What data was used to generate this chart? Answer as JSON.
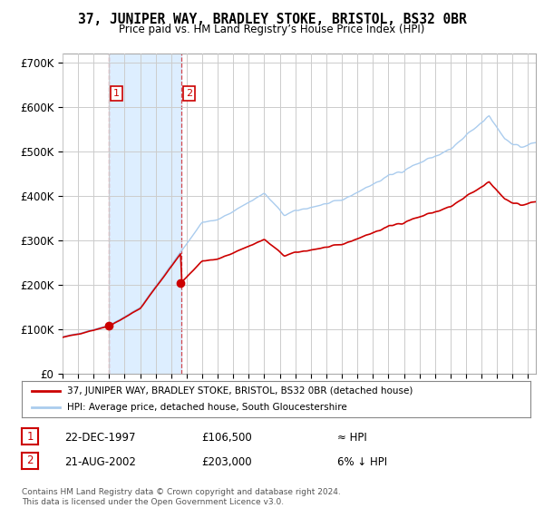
{
  "title": "37, JUNIPER WAY, BRADLEY STOKE, BRISTOL, BS32 0BR",
  "subtitle": "Price paid vs. HM Land Registry’s House Price Index (HPI)",
  "ylabel_ticks": [
    "£0",
    "£100K",
    "£200K",
    "£300K",
    "£400K",
    "£500K",
    "£600K",
    "£700K"
  ],
  "ytick_values": [
    0,
    100000,
    200000,
    300000,
    400000,
    500000,
    600000,
    700000
  ],
  "ylim": [
    0,
    720000
  ],
  "xlim_start": 1995.0,
  "xlim_end": 2025.5,
  "sale1_year": 1997.97,
  "sale1_price": 106500,
  "sale2_year": 2002.64,
  "sale2_price": 203000,
  "legend_line1": "37, JUNIPER WAY, BRADLEY STOKE, BRISTOL, BS32 0BR (detached house)",
  "legend_line2": "HPI: Average price, detached house, South Gloucestershire",
  "footer1": "Contains HM Land Registry data © Crown copyright and database right 2024.",
  "footer2": "This data is licensed under the Open Government Licence v3.0.",
  "table_row1_date": "22-DEC-1997",
  "table_row1_price": "£106,500",
  "table_row1_hpi": "≈ HPI",
  "table_row2_date": "21-AUG-2002",
  "table_row2_price": "£203,000",
  "table_row2_hpi": "6% ↓ HPI",
  "red_color": "#cc0000",
  "blue_color": "#aaccee",
  "fill_color": "#ddeeff",
  "grid_color": "#cccccc",
  "background": "#ffffff"
}
